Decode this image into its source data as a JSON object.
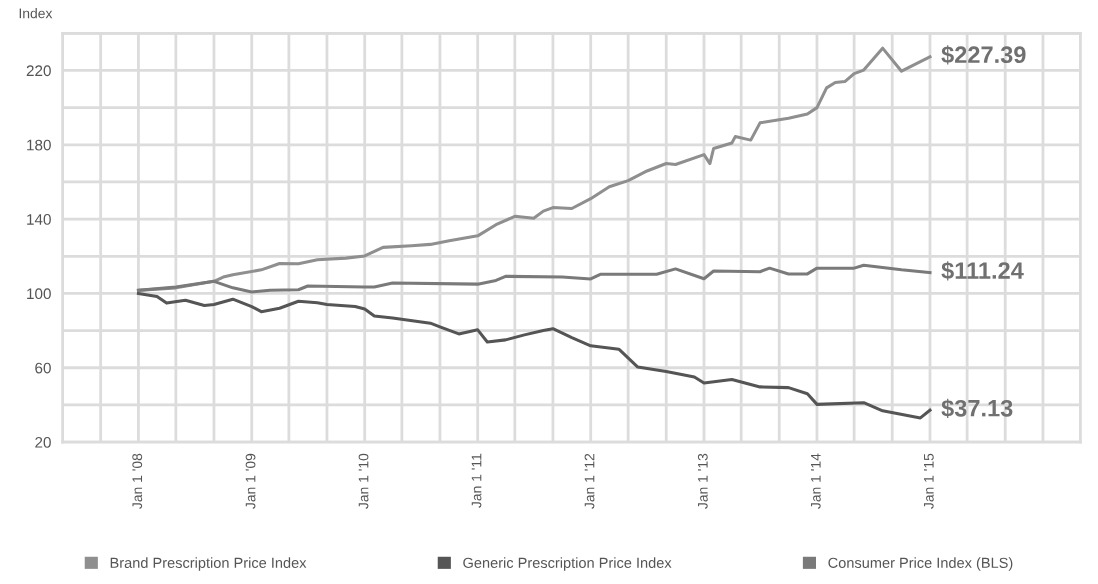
{
  "chart_data": {
    "type": "line",
    "ylabel": "Index",
    "xlim": [
      "2007-05-01",
      "2016-05-01"
    ],
    "ylim": [
      20,
      240
    ],
    "yticks": [
      20,
      {
        "value": 40,
        "label": null
      },
      60,
      {
        "value": 80,
        "label": null
      },
      100,
      {
        "value": 120,
        "label": null
      },
      140,
      {
        "value": 160,
        "label": null
      },
      180,
      {
        "value": 200,
        "label": null
      },
      220,
      {
        "value": 240,
        "label": null
      }
    ],
    "xticks": [
      {
        "value": "2007-05-01",
        "label": null
      },
      {
        "value": "2007-09-01",
        "label": null
      },
      {
        "value": "2008-01-01",
        "label": "Jan 1 '08"
      },
      {
        "value": "2008-05-01",
        "label": null
      },
      {
        "value": "2008-09-01",
        "label": null
      },
      {
        "value": "2009-01-01",
        "label": "Jan 1 '09"
      },
      {
        "value": "2009-05-01",
        "label": null
      },
      {
        "value": "2009-09-01",
        "label": null
      },
      {
        "value": "2010-01-01",
        "label": "Jan 1 '10"
      },
      {
        "value": "2010-05-01",
        "label": null
      },
      {
        "value": "2010-09-01",
        "label": null
      },
      {
        "value": "2011-01-01",
        "label": "Jan 1 '11"
      },
      {
        "value": "2011-05-01",
        "label": null
      },
      {
        "value": "2011-09-01",
        "label": null
      },
      {
        "value": "2012-01-01",
        "label": "Jan 1 '12"
      },
      {
        "value": "2012-05-01",
        "label": null
      },
      {
        "value": "2012-09-01",
        "label": null
      },
      {
        "value": "2013-01-01",
        "label": "Jan 1 '13"
      },
      {
        "value": "2013-05-01",
        "label": null
      },
      {
        "value": "2013-09-01",
        "label": null
      },
      {
        "value": "2014-01-01",
        "label": "Jan 1 '14"
      },
      {
        "value": "2014-05-01",
        "label": null
      },
      {
        "value": "2014-09-01",
        "label": null
      },
      {
        "value": "2015-01-01",
        "label": "Jan 1 '15"
      },
      {
        "value": "2015-05-01",
        "label": null
      },
      {
        "value": "2015-09-01",
        "label": null
      },
      {
        "value": "2016-01-01",
        "label": null
      },
      {
        "value": "2016-05-01",
        "label": null
      }
    ],
    "grid": true,
    "legend": "bottom",
    "marker": "none",
    "line_style": "solid",
    "series": [
      {
        "name": "Brand Prescription Price Index",
        "color": "#8f8f8f",
        "x": [
          "2008-01-01",
          "2008-05-01",
          "2008-09-01",
          "2008-10-01",
          "2008-11-01",
          "2009-02-01",
          "2009-04-01",
          "2009-06-01",
          "2009-08-01",
          "2009-11-01",
          "2010-01-01",
          "2010-03-01",
          "2010-06-01",
          "2010-08-01",
          "2010-10-01",
          "2011-01-01",
          "2011-03-01",
          "2011-05-01",
          "2011-07-01",
          "2011-08-01",
          "2011-09-01",
          "2011-11-01",
          "2012-01-01",
          "2012-03-01",
          "2012-05-01",
          "2012-07-01",
          "2012-09-01",
          "2012-10-01",
          "2013-01-01",
          "2013-01-20",
          "2013-02-01",
          "2013-04-01",
          "2013-04-12",
          "2013-06-01",
          "2013-07-01",
          "2013-10-01",
          "2013-12-01",
          "2014-01-01",
          "2014-02-01",
          "2014-03-01",
          "2014-04-01",
          "2014-05-01",
          "2014-06-01",
          "2014-08-01",
          "2014-10-01",
          "2015-01-01"
        ],
        "values": [
          101.7,
          103,
          106.5,
          108.8,
          110,
          112.7,
          116.1,
          116,
          118.1,
          119,
          120.2,
          124.8,
          125.7,
          126.4,
          128.4,
          131,
          137,
          141.5,
          140.5,
          144.3,
          146.2,
          145.7,
          151,
          157.4,
          160.7,
          165.9,
          169.9,
          169.4,
          174.7,
          169.9,
          178,
          181,
          184.4,
          182.5,
          191.8,
          194.3,
          196.6,
          200,
          210.6,
          213.5,
          214,
          218.3,
          220.2,
          232,
          219.6,
          227.39
        ]
      },
      {
        "name": "Generic Prescription Price Index",
        "color": "#555555",
        "x": [
          "2008-01-01",
          "2008-03-01",
          "2008-04-01",
          "2008-06-01",
          "2008-08-01",
          "2008-09-01",
          "2008-11-01",
          "2009-01-01",
          "2009-02-01",
          "2009-04-01",
          "2009-06-01",
          "2009-08-01",
          "2009-09-01",
          "2009-12-01",
          "2010-01-01",
          "2010-02-01",
          "2010-04-01",
          "2010-08-01",
          "2010-09-01",
          "2010-11-01",
          "2011-01-01",
          "2011-02-01",
          "2011-04-01",
          "2011-06-01",
          "2011-08-01",
          "2011-09-01",
          "2011-11-01",
          "2012-01-01",
          "2012-04-01",
          "2012-06-01",
          "2012-09-01",
          "2012-12-01",
          "2013-01-01",
          "2013-04-01",
          "2013-07-01",
          "2013-10-01",
          "2013-12-01",
          "2014-01-01",
          "2014-06-01",
          "2014-08-01",
          "2014-12-01",
          "2015-01-01"
        ],
        "values": [
          100,
          98.3,
          94.8,
          96.3,
          93.5,
          94,
          96.9,
          92.9,
          90.2,
          92,
          95.8,
          95,
          94,
          93,
          91.6,
          87.8,
          86.8,
          84,
          82,
          78.2,
          80.4,
          73.9,
          75,
          77.7,
          80,
          81,
          76.2,
          71.8,
          70,
          60.4,
          58,
          55,
          51.8,
          53.7,
          49.7,
          49.3,
          46,
          40.3,
          41.2,
          36.8,
          33,
          37.13
        ]
      },
      {
        "name": "Consumer Price Index (BLS)",
        "color": "#7a7a7a",
        "x": [
          "2008-01-01",
          "2008-05-01",
          "2008-09-01",
          "2008-11-01",
          "2009-01-01",
          "2009-03-01",
          "2009-06-01",
          "2009-07-01",
          "2010-01-01",
          "2010-02-01",
          "2010-04-01",
          "2011-01-01",
          "2011-03-01",
          "2011-04-01",
          "2011-10-01",
          "2012-01-01",
          "2012-02-01",
          "2012-08-01",
          "2012-10-01",
          "2013-01-01",
          "2013-02-01",
          "2013-07-01",
          "2013-08-01",
          "2013-10-01",
          "2013-12-01",
          "2014-01-01",
          "2014-05-01",
          "2014-06-01",
          "2014-10-01",
          "2015-01-01"
        ],
        "values": [
          101.7,
          103.5,
          106.5,
          103,
          100.8,
          101.7,
          102,
          104,
          103.5,
          103.5,
          105.6,
          105,
          107,
          109.2,
          108.8,
          107.8,
          110.3,
          110.3,
          113.2,
          107.9,
          112.1,
          111.7,
          113.6,
          110.5,
          110.5,
          113.6,
          113.6,
          115.2,
          112.7,
          111.24
        ]
      }
    ],
    "annotations": [
      {
        "text": "$227.39",
        "x": "2015-01-01",
        "y": 227.39
      },
      {
        "text": "$111.24",
        "x": "2015-01-01",
        "y": 111.24
      },
      {
        "text": "$37.13",
        "x": "2015-01-01",
        "y": 37.13
      }
    ]
  }
}
